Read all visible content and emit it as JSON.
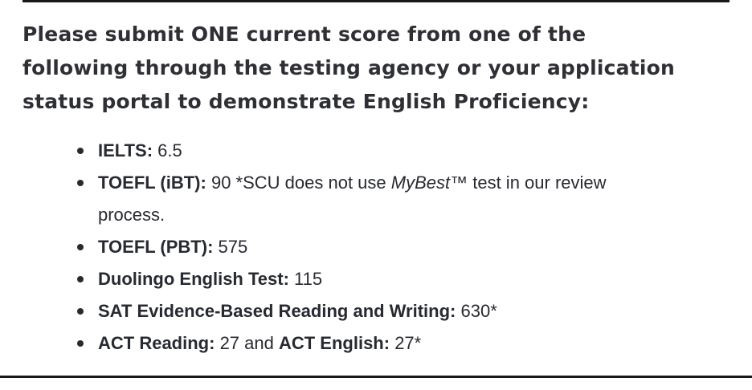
{
  "page": {
    "heading_lines": [
      "Please submit ONE current score from one of the",
      "following through the testing agency or your application",
      "status portal to demonstrate English Proficiency:"
    ],
    "list": {
      "items": [
        {
          "label": "IELTS:",
          "value": " 6.5"
        },
        {
          "label": "TOEFL (iBT):",
          "value_before": " 90 *SCU does not use ",
          "italic_term": "MyBest",
          "trademark": "™",
          "value_after": " test in our review process."
        },
        {
          "label": "TOEFL (PBT):",
          "value": " 575"
        },
        {
          "label": "Duolingo English Test:",
          "value": " 115"
        },
        {
          "label": "SAT Evidence-Based Reading and Writing:",
          "value": " 630*"
        },
        {
          "label": "ACT Reading:",
          "value": " 27 and ",
          "label2": "ACT English:",
          "value2": " 27*"
        }
      ]
    },
    "colors": {
      "background": "#ffffff",
      "heading_text": "#2f3035",
      "body_text": "#282a31",
      "rule": "#17181a"
    }
  }
}
